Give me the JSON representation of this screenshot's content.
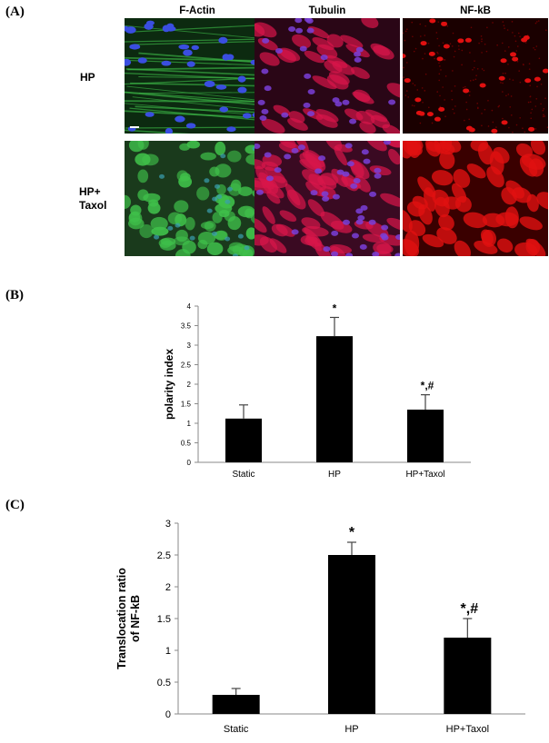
{
  "panel_labels": {
    "a": "(A)",
    "b": "(B)",
    "c": "(C)"
  },
  "micrographs": {
    "columns": [
      "F-Actin",
      "Tubulin",
      "NF-kB"
    ],
    "rows": [
      {
        "label_line1": "HP",
        "label_line2": ""
      },
      {
        "label_line1": "HP+",
        "label_line2": "Taxol"
      }
    ]
  },
  "chart_data": [
    {
      "type": "bar",
      "panel": "(B)",
      "categories": [
        "Static",
        "HP",
        "HP+Taxol"
      ],
      "values": [
        1.12,
        3.23,
        1.35
      ],
      "errors": [
        0.35,
        0.48,
        0.38
      ],
      "annotations": [
        "",
        "*",
        "*,#"
      ],
      "title": "",
      "xlabel": "",
      "ylabel": "polarity index",
      "ylim": [
        0,
        4
      ],
      "yticks": [
        "0",
        "0.5",
        "1",
        "1.5",
        "2",
        "2.5",
        "3",
        "3.5",
        "4"
      ],
      "grid": false
    },
    {
      "type": "bar",
      "panel": "(C)",
      "categories": [
        "Static",
        "HP",
        "HP+Taxol"
      ],
      "values": [
        0.3,
        2.5,
        1.2
      ],
      "errors": [
        0.1,
        0.2,
        0.3
      ],
      "annotations": [
        "",
        "*",
        "*,#"
      ],
      "title": "",
      "xlabel": "",
      "ylabel": "Translocation ratio of NF-kB",
      "ylabel_line1": "Translocation ratio",
      "ylabel_line2": "of NF-kB",
      "ylim": [
        0,
        3
      ],
      "yticks": [
        "0",
        "0.5",
        "1",
        "1.5",
        "2",
        "2.5",
        "3"
      ],
      "grid": false
    }
  ],
  "colors": {
    "bar": "#000000",
    "actin": "#3fbf4a",
    "nucleus": "#3a4ee0",
    "tubulin": "#d8164a",
    "nfkb": "#e01010"
  }
}
